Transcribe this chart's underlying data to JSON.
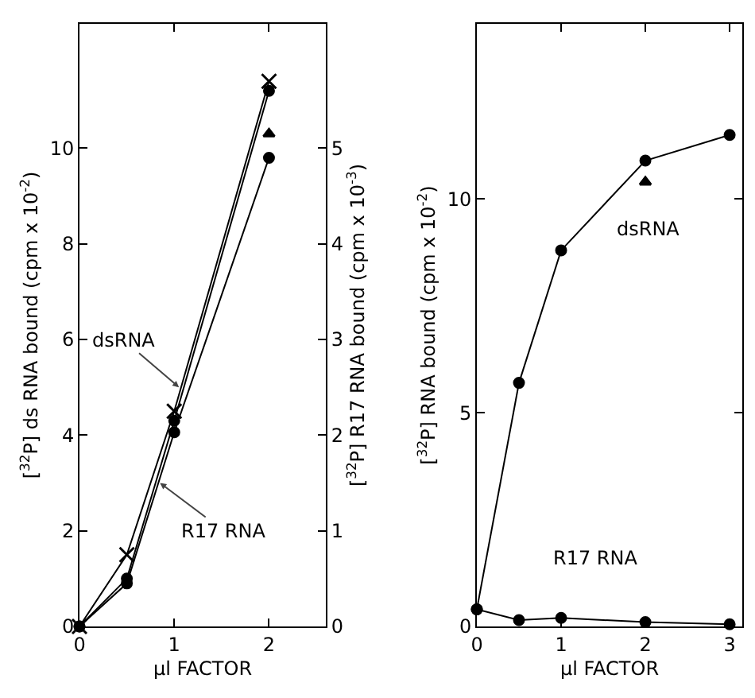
{
  "chart_data": [
    {
      "type": "line",
      "xlabel": "μl FACTOR",
      "ylabel": "[$^{32}$P] ds RNA bound (cpm x 10$^{-2}$)",
      "y2label": "[$^{32}$P] R17 RNA bound (cpm x 10$^{-3}$)",
      "x": [
        0,
        0.5,
        1,
        2
      ],
      "xlim": [
        0,
        2.6
      ],
      "xticks": [
        0,
        1,
        2
      ],
      "ylim": [
        0,
        12.6
      ],
      "yticks": [
        0,
        2,
        4,
        6,
        8,
        10
      ],
      "y2lim": [
        0,
        6.3
      ],
      "y2ticks": [
        0,
        1,
        2,
        3,
        4,
        5
      ],
      "line_style": "solid",
      "series": [
        {
          "color": "#000000",
          "marker": "cross",
          "values": [
            0,
            1.5,
            4.5,
            11.4
          ]
        },
        {
          "color": "#000000",
          "marker": "circle",
          "values": [
            0,
            1.0,
            4.3,
            11.2
          ]
        },
        {
          "color": "#000000",
          "marker": "circle",
          "axis": "y2",
          "values": [
            0,
            0.45,
            2.03,
            4.9
          ]
        },
        {
          "type": "scatter",
          "color": "#000000",
          "marker": "triangle",
          "axis": "y2",
          "x": [
            2
          ],
          "values": [
            5.15
          ]
        }
      ],
      "annotations": [
        {
          "text": "dsRNA",
          "x": 1.05,
          "y": 5.0
        },
        {
          "text": "R17 RNA",
          "x": 0.85,
          "y": 3.0
        }
      ]
    },
    {
      "type": "line",
      "xlabel": "μl FACTOR",
      "ylabel": "[$^{32}$P] RNA bound (cpm x 10$^{-2}$)",
      "x": [
        0,
        0.5,
        1,
        2,
        3
      ],
      "xlim": [
        0,
        3.15
      ],
      "xticks": [
        0,
        1,
        2,
        3
      ],
      "ylim": [
        0,
        14.1
      ],
      "yticks": [
        0,
        5,
        10
      ],
      "line_style": "solid",
      "series": [
        {
          "color": "#000000",
          "marker": "circle",
          "values": [
            0.4,
            5.7,
            8.8,
            10.9,
            11.5
          ]
        },
        {
          "color": "#000000",
          "marker": "circle",
          "values": [
            0.4,
            0.15,
            0.2,
            0.1,
            0.05
          ]
        },
        {
          "type": "scatter",
          "color": "#000000",
          "marker": "triangle",
          "x": [
            2
          ],
          "values": [
            10.4
          ]
        }
      ],
      "annotations": [
        "dsRNA",
        "R17 RNA"
      ]
    }
  ]
}
